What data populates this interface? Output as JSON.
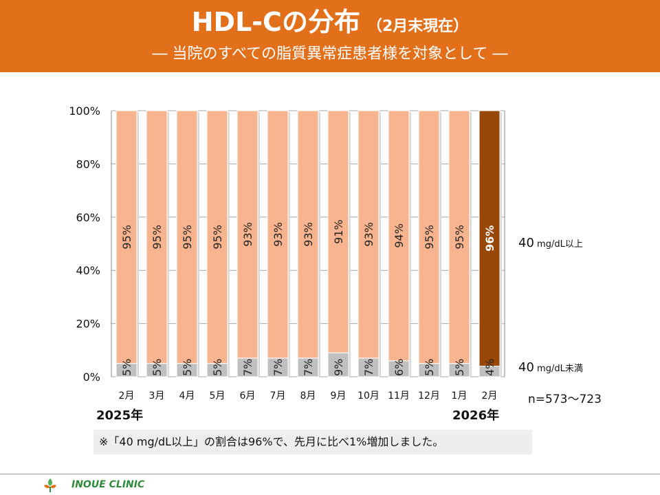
{
  "header": {
    "title": "HDL-Cの分布",
    "title_sub": "（2月末現在）",
    "subtitle": "― 当院のすべての脂質異常症患者様を対象として ―"
  },
  "chart_data": {
    "type": "bar",
    "stacked": true,
    "categories": [
      "2月",
      "3月",
      "4月",
      "5月",
      "6月",
      "7月",
      "8月",
      "9月",
      "10月",
      "11月",
      "12月",
      "1月",
      "2月"
    ],
    "series": [
      {
        "name": "40 mg/dL未満",
        "values": [
          5,
          5,
          5,
          5,
          7,
          7,
          7,
          9,
          7,
          6,
          5,
          5,
          4
        ]
      },
      {
        "name": "40 mg/dL以上",
        "values": [
          95,
          95,
          95,
          95,
          93,
          93,
          93,
          91,
          93,
          94,
          95,
          95,
          96
        ]
      }
    ],
    "y_ticks": [
      "0%",
      "20%",
      "40%",
      "60%",
      "80%",
      "100%"
    ],
    "ylim": [
      0,
      100
    ],
    "grid": true,
    "highlight_last": true,
    "colors": {
      "upper": "#f7b48e",
      "lower": "#bfbfbf",
      "highlight_upper": "#974706",
      "grid": "#a6a6a6"
    }
  },
  "years": {
    "start": "2025年",
    "end": "2026年"
  },
  "legend": {
    "upper_value": "40",
    "upper_unit": " mg/dL以上",
    "lower_value": "40",
    "lower_unit": " mg/dL未満"
  },
  "n_label": "n=573～723",
  "note": "※「40 mg/dL以上」の割合は96%で、先月に比べ1%増加しました。",
  "footer": {
    "clinic": "INOUE CLINIC"
  }
}
